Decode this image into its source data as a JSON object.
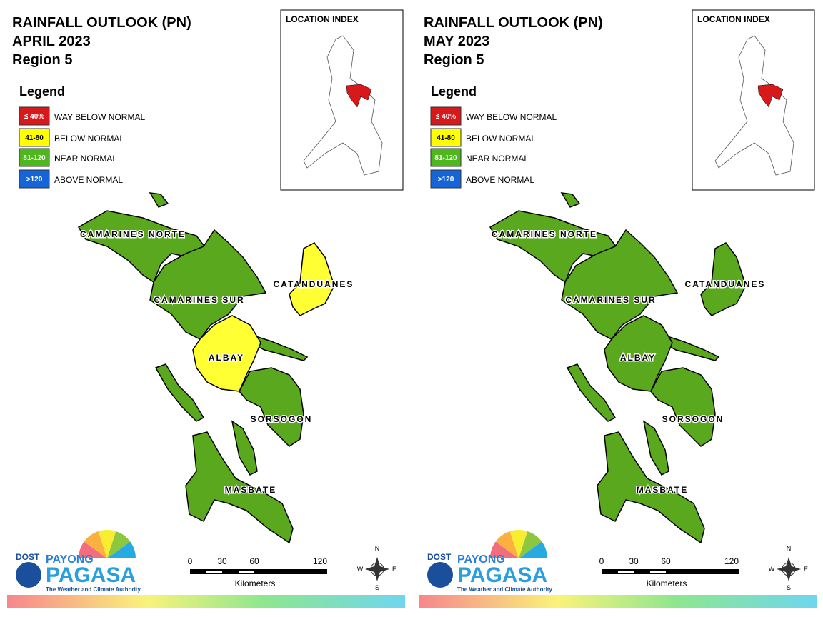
{
  "panels": [
    {
      "title": [
        "RAINFALL OUTLOOK (PN)",
        "APRIL 2023",
        "Region 5"
      ],
      "location_index": "LOCATION INDEX",
      "legend": {
        "title": "Legend",
        "items": [
          {
            "range": "≤ 40%",
            "label": "WAY BELOW NORMAL",
            "color": "#d7191c"
          },
          {
            "range": "41-80",
            "label": "BELOW NORMAL",
            "color": "#ffff00"
          },
          {
            "range": "81-120",
            "label": "NEAR NORMAL",
            "color": "#4cb81c"
          },
          {
            "range": ">120",
            "label": "ABOVE NORMAL",
            "color": "#1565d8"
          }
        ]
      },
      "provinces": [
        {
          "name": "CAMARINES NORTE",
          "fill": "#5aa81e"
        },
        {
          "name": "CAMARINES SUR",
          "fill": "#5aa81e"
        },
        {
          "name": "CATANDUANES",
          "fill": "#ffff33"
        },
        {
          "name": "ALBAY",
          "fill": "#ffff33"
        },
        {
          "name": "SORSOGON",
          "fill": "#5aa81e"
        },
        {
          "name": "MASBATE",
          "fill": "#5aa81e"
        }
      ],
      "scale": {
        "ticks": [
          "0",
          "30",
          "60",
          "120"
        ],
        "unit": "Kilometers"
      },
      "compass": {
        "n": "N",
        "e": "E",
        "s": "S",
        "w": "W"
      },
      "logo": {
        "dost": "DOST",
        "payong": "PAYONG",
        "pagasa": "PAGASA",
        "tagline": "The Weather and Climate Authority"
      }
    },
    {
      "title": [
        "RAINFALL OUTLOOK (PN)",
        "MAY 2023",
        "Region 5"
      ],
      "location_index": "LOCATION INDEX",
      "legend": {
        "title": "Legend",
        "items": [
          {
            "range": "≤ 40%",
            "label": "WAY BELOW NORMAL",
            "color": "#d7191c"
          },
          {
            "range": "41-80",
            "label": "BELOW NORMAL",
            "color": "#ffff00"
          },
          {
            "range": "81-120",
            "label": "NEAR NORMAL",
            "color": "#4cb81c"
          },
          {
            "range": ">120",
            "label": "ABOVE NORMAL",
            "color": "#1565d8"
          }
        ]
      },
      "provinces": [
        {
          "name": "CAMARINES NORTE",
          "fill": "#5aa81e"
        },
        {
          "name": "CAMARINES SUR",
          "fill": "#5aa81e"
        },
        {
          "name": "CATANDUANES",
          "fill": "#5aa81e"
        },
        {
          "name": "ALBAY",
          "fill": "#5aa81e"
        },
        {
          "name": "SORSOGON",
          "fill": "#5aa81e"
        },
        {
          "name": "MASBATE",
          "fill": "#5aa81e"
        }
      ],
      "scale": {
        "ticks": [
          "0",
          "30",
          "60",
          "120"
        ],
        "unit": "Kilometers"
      },
      "compass": {
        "n": "N",
        "e": "E",
        "s": "S",
        "w": "W"
      },
      "logo": {
        "dost": "DOST",
        "payong": "PAYONG",
        "pagasa": "PAGASA",
        "tagline": "The Weather and Climate Authority"
      }
    }
  ]
}
